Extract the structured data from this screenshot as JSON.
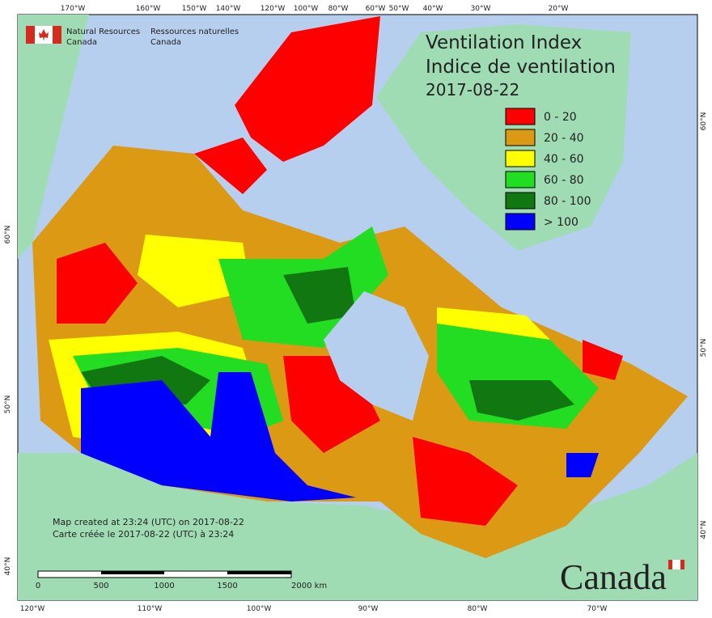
{
  "header": {
    "agency_en": "Natural Resources",
    "agency_en2": "Canada",
    "agency_fr": "Ressources naturelles",
    "agency_fr2": "Canada"
  },
  "title": {
    "line1": "Ventilation Index",
    "line2": "Indice de ventilation",
    "date": "2017-08-22"
  },
  "legend": [
    {
      "label": "0 - 20",
      "color": "#ff0000"
    },
    {
      "label": "20 - 40",
      "color": "#dc9a14"
    },
    {
      "label": "40 - 60",
      "color": "#ffff00"
    },
    {
      "label": "60 - 80",
      "color": "#22dd22"
    },
    {
      "label": "80 - 100",
      "color": "#117711"
    },
    {
      "label": "> 100",
      "color": "#0000ff"
    }
  ],
  "graticule": {
    "top": [
      "170°W",
      "160°W",
      "150°W",
      "140°W",
      "120°W",
      "100°W",
      "80°W",
      "60°W",
      "50°W",
      "40°W",
      "30°W",
      "20°W"
    ],
    "bottom": [
      "120°W",
      "110°W",
      "100°W",
      "90°W",
      "80°W",
      "70°W"
    ],
    "left": [
      "60°N",
      "50°N",
      "40°N"
    ],
    "right": [
      "60°N",
      "50°N",
      "40°N"
    ]
  },
  "footer": {
    "created_en": "Map created at 23:24 (UTC) on 2017-08-22",
    "created_fr": "Carte créée le 2017-08-22 (UTC) à 23:24"
  },
  "scale": {
    "labels": [
      "0",
      "500",
      "1000",
      "1500",
      "2000 km"
    ]
  },
  "wordmark": "Canada"
}
